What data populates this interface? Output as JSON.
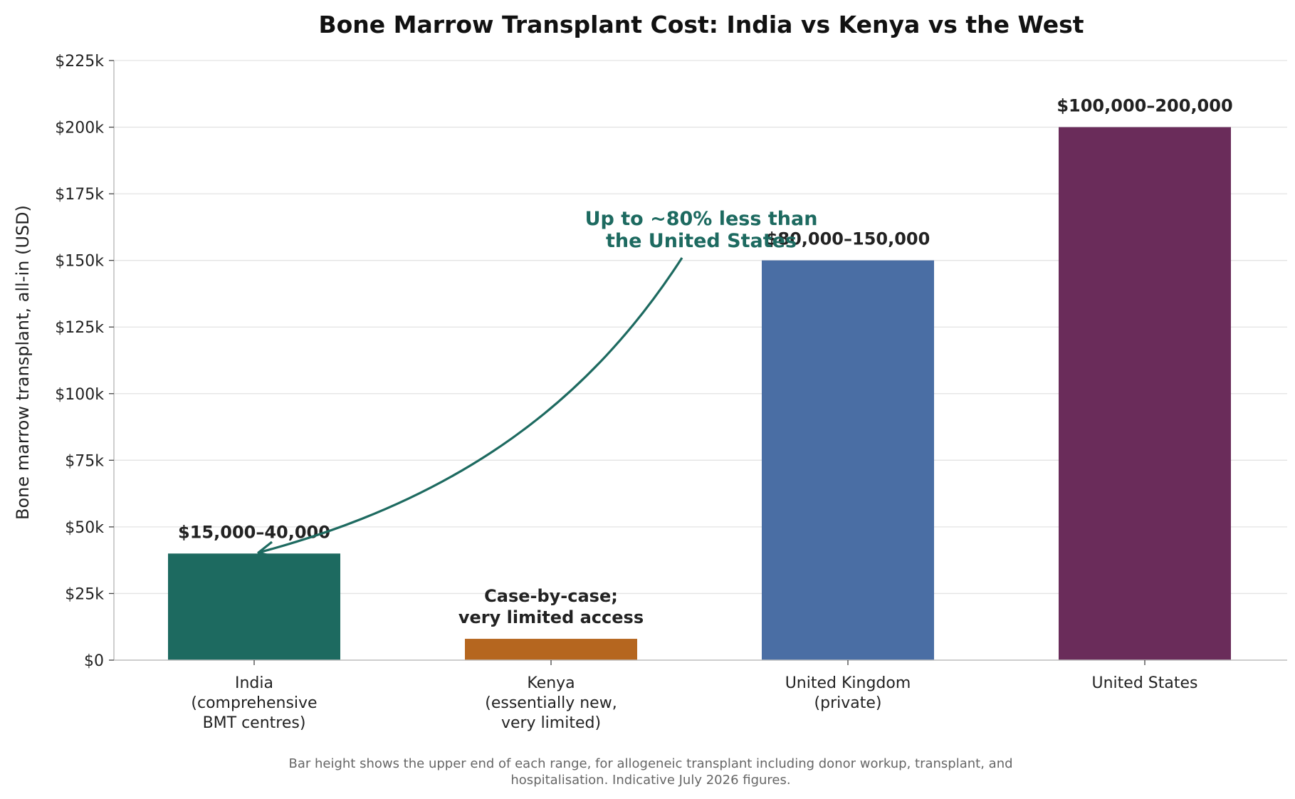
{
  "chart_data": {
    "type": "bar",
    "title": "Bone Marrow Transplant Cost: India vs Kenya vs the West",
    "xlabel": "",
    "ylabel": "Bone marrow transplant, all-in (USD)",
    "ylim": [
      0,
      225000
    ],
    "yticks": [
      0,
      25000,
      50000,
      75000,
      100000,
      125000,
      150000,
      175000,
      200000,
      225000
    ],
    "ytick_labels": [
      "$0",
      "$25k",
      "$50k",
      "$75k",
      "$100k",
      "$125k",
      "$150k",
      "$175k",
      "$200k",
      "$225k"
    ],
    "grid": "y",
    "categories": [
      [
        "India",
        "(comprehensive",
        "BMT centres)"
      ],
      [
        "Kenya",
        "(essentially new,",
        "very limited)"
      ],
      [
        "United Kingdom",
        "(private)"
      ],
      [
        "United States"
      ]
    ],
    "values": [
      40000,
      8000,
      150000,
      200000
    ],
    "colors": [
      "#1d6a60",
      "#b5661f",
      "#4a6ea4",
      "#6a2c5a"
    ],
    "data_labels": [
      [
        "$15,000–40,000"
      ],
      [
        "Case-by-case;",
        "very limited access"
      ],
      [
        "$80,000–150,000"
      ],
      [
        "$100,000–200,000"
      ]
    ],
    "annotation": {
      "lines": [
        "Up to ~80% less than",
        "the United States"
      ],
      "points_to_category": 0,
      "color": "#1d6a60"
    },
    "footnote": [
      "Bar height shows the upper end of each range, for allogeneic transplant including donor workup, transplant, and",
      "hospitalisation. Indicative July 2026 figures."
    ]
  }
}
